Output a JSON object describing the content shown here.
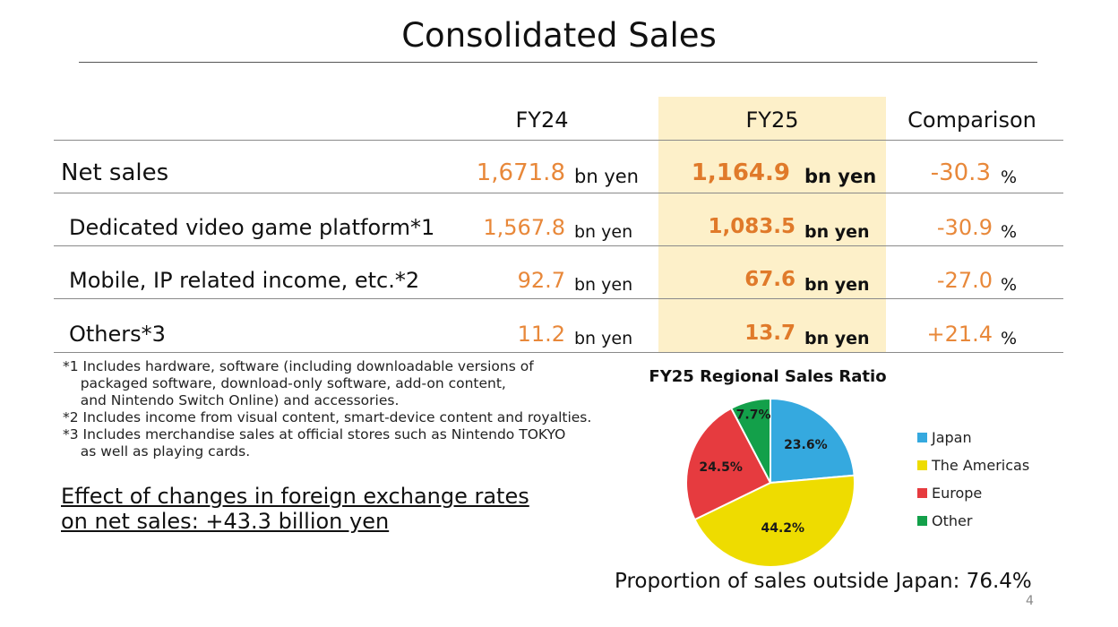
{
  "title": "Consolidated Sales",
  "table": {
    "headers": {
      "fy24": "FY24",
      "fy25": "FY25",
      "comparison": "Comparison"
    },
    "unit": "bn yen",
    "pct_unit": "%",
    "rows": [
      {
        "label": "Net sales",
        "fy24": "1,671.8",
        "fy25": "1,164.9",
        "comparison": "-30.3"
      },
      {
        "label": "Dedicated video game platform*1",
        "fy24": "1,567.8",
        "fy25": "1,083.5",
        "comparison": "-30.9"
      },
      {
        "label": "Mobile, IP related income, etc.*2",
        "fy24": "92.7",
        "fy25": "67.6",
        "comparison": "-27.0"
      },
      {
        "label": "Others*3",
        "fy24": "11.2",
        "fy25": "13.7",
        "comparison": "+21.4"
      }
    ]
  },
  "notes": {
    "n1": "*1 Includes hardware, software (including downloadable versions of\n    packaged software, download-only software, add-on content,\n    and Nintendo Switch Online) and accessories.",
    "n2": "*2 Includes income from visual content, smart-device content and royalties.",
    "n3": "*3 Includes merchandise sales at official stores such as Nintendo TOKYO\n    as well as playing cards."
  },
  "fx_effect": {
    "line1": "Effect of changes in foreign exchange rates",
    "line2": "on net sales: +43.3 billion yen"
  },
  "chart_data": {
    "type": "pie",
    "title": "FY25 Regional Sales Ratio",
    "slices": [
      {
        "name": "Japan",
        "value": 23.6,
        "label": "23.6%",
        "color": "#35a9df"
      },
      {
        "name": "The Americas",
        "value": 44.2,
        "label": "44.2%",
        "color": "#eedc00"
      },
      {
        "name": "Europe",
        "value": 24.5,
        "label": "24.5%",
        "color": "#e63b3f"
      },
      {
        "name": "Other",
        "value": 7.7,
        "label": "7.7%",
        "color": "#13a04a"
      }
    ],
    "legend_position": "right"
  },
  "outside_japan": "Proportion of sales outside Japan: 76.4%",
  "page_number": "4"
}
